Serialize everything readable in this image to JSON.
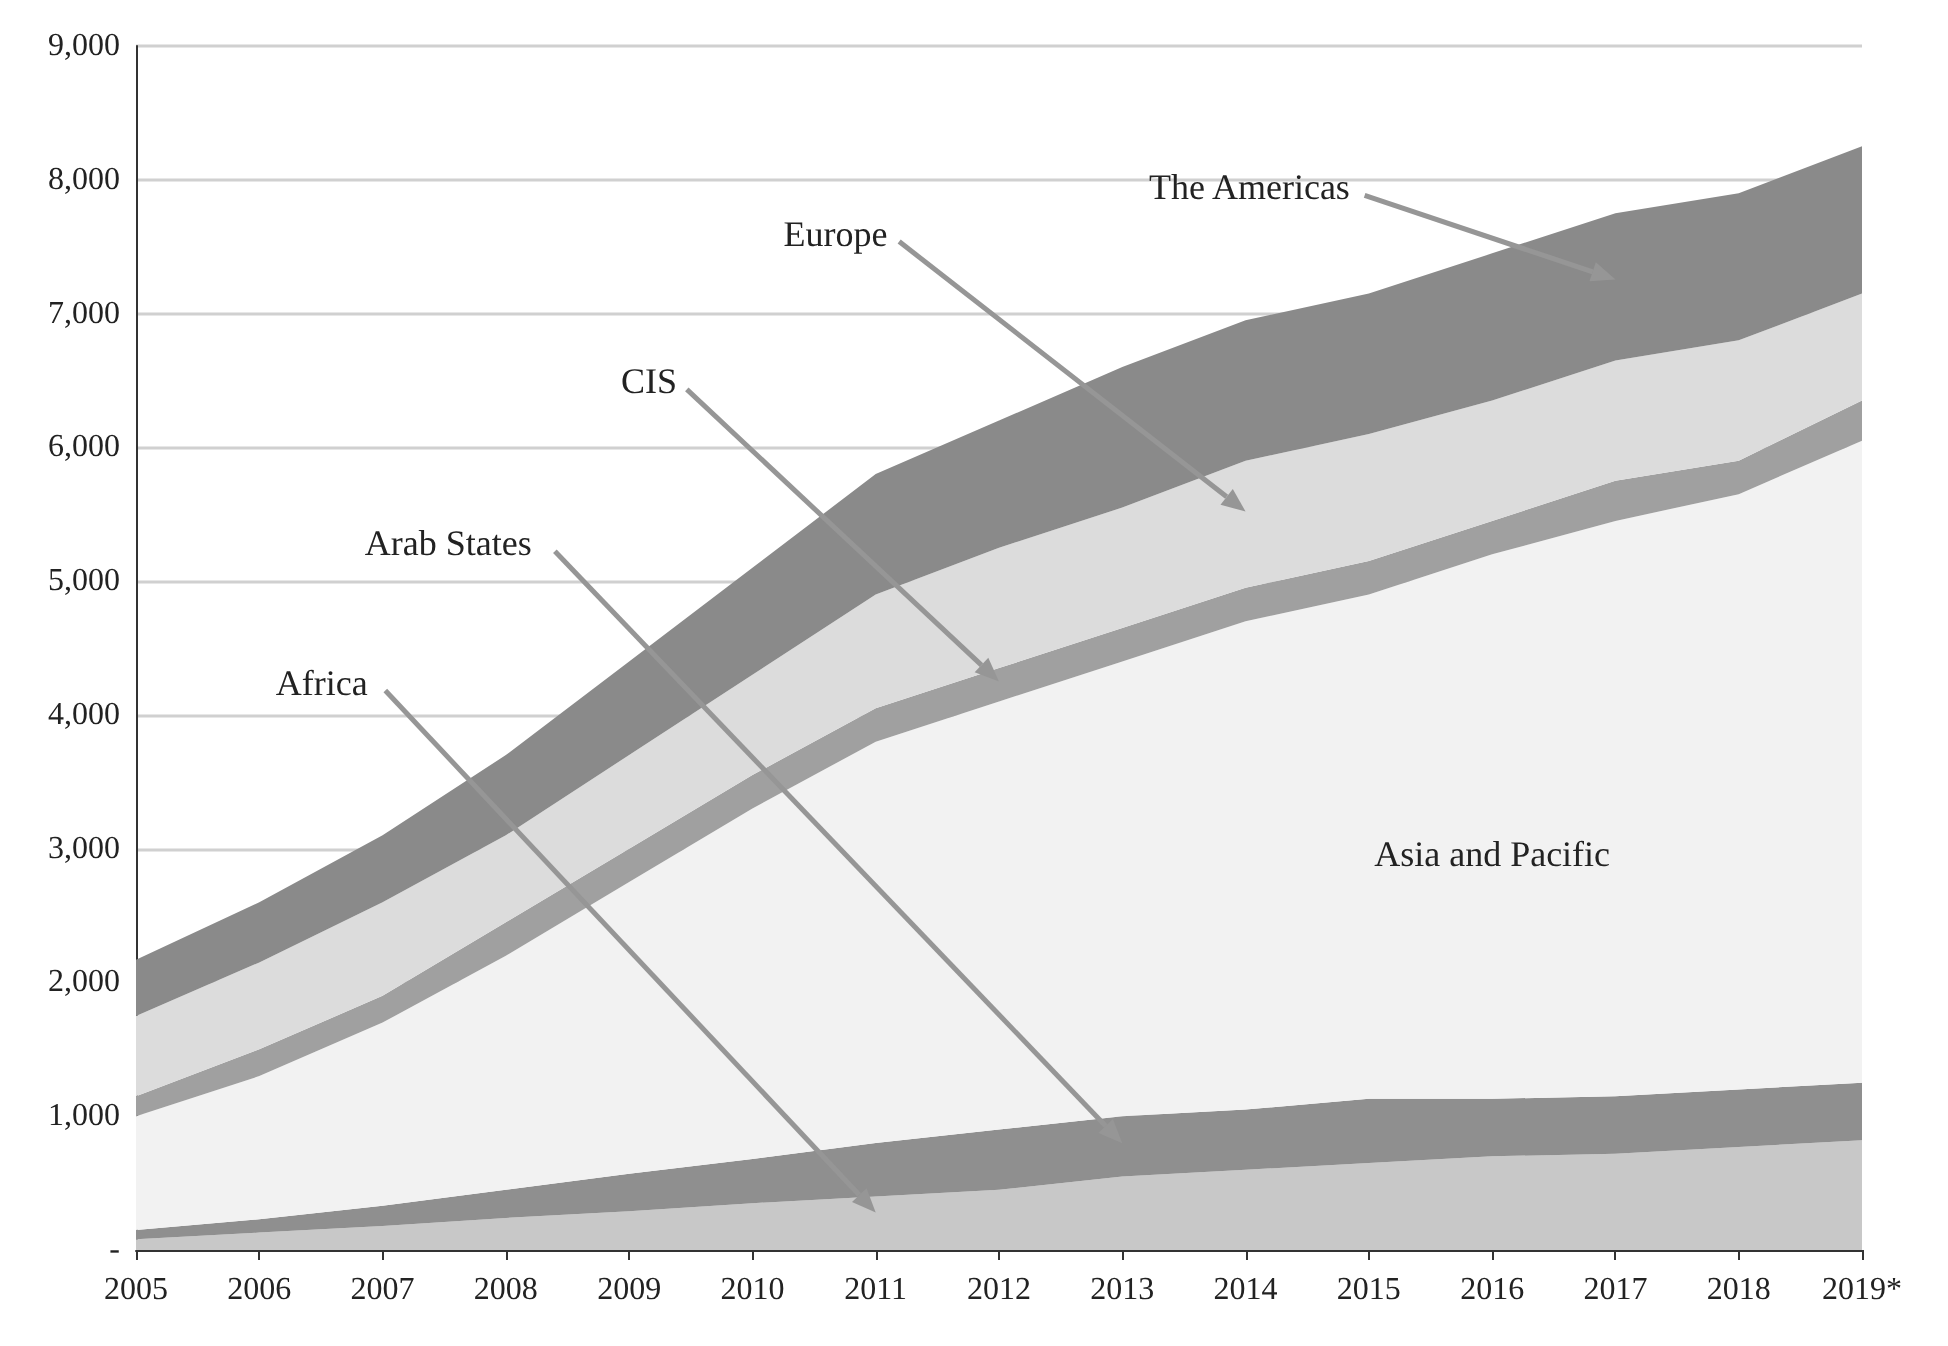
{
  "chart_data": {
    "type": "area",
    "stacked": true,
    "categories": [
      "2005",
      "2006",
      "2007",
      "2008",
      "2009",
      "2010",
      "2011",
      "2012",
      "2013",
      "2014",
      "2015",
      "2016",
      "2017",
      "2018",
      "2019*"
    ],
    "series": [
      {
        "name": "Africa",
        "color": "#c8c8c8",
        "values": [
          80,
          130,
          180,
          240,
          290,
          350,
          400,
          450,
          550,
          600,
          650,
          700,
          720,
          770,
          820
        ]
      },
      {
        "name": "Arab States",
        "color": "#8f8f8f",
        "values": [
          70,
          100,
          150,
          210,
          280,
          330,
          400,
          450,
          450,
          450,
          480,
          430,
          430,
          430,
          430
        ]
      },
      {
        "name": "Asia and Pacific",
        "color": "#f2f2f2",
        "values": [
          850,
          1070,
          1370,
          1750,
          2180,
          2620,
          3000,
          3200,
          3400,
          3650,
          3770,
          4070,
          4300,
          4450,
          4800
        ]
      },
      {
        "name": "CIS",
        "color": "#a0a0a0",
        "values": [
          150,
          200,
          200,
          250,
          250,
          250,
          250,
          250,
          250,
          250,
          250,
          250,
          300,
          250,
          300
        ]
      },
      {
        "name": "Europe",
        "color": "#dcdcdc",
        "values": [
          600,
          650,
          700,
          650,
          700,
          750,
          850,
          900,
          900,
          950,
          950,
          900,
          900,
          900,
          800
        ]
      },
      {
        "name": "The Americas",
        "color": "#8a8a8a",
        "values": [
          420,
          450,
          500,
          600,
          700,
          800,
          900,
          950,
          1050,
          1050,
          1050,
          1100,
          1100,
          1100,
          1100
        ]
      }
    ],
    "ylim": [
      0,
      9000
    ],
    "yticks": [
      {
        "value": 0,
        "label": "-"
      },
      {
        "value": 1000,
        "label": "1,000"
      },
      {
        "value": 2000,
        "label": "2,000"
      },
      {
        "value": 3000,
        "label": "3,000"
      },
      {
        "value": 4000,
        "label": "4,000"
      },
      {
        "value": 5000,
        "label": "5,000"
      },
      {
        "value": 6000,
        "label": "6,000"
      },
      {
        "value": 7000,
        "label": "7,000"
      },
      {
        "value": 8000,
        "label": "8,000"
      },
      {
        "value": 9000,
        "label": "9,000"
      }
    ],
    "grid": "y",
    "legend": false
  }
}
